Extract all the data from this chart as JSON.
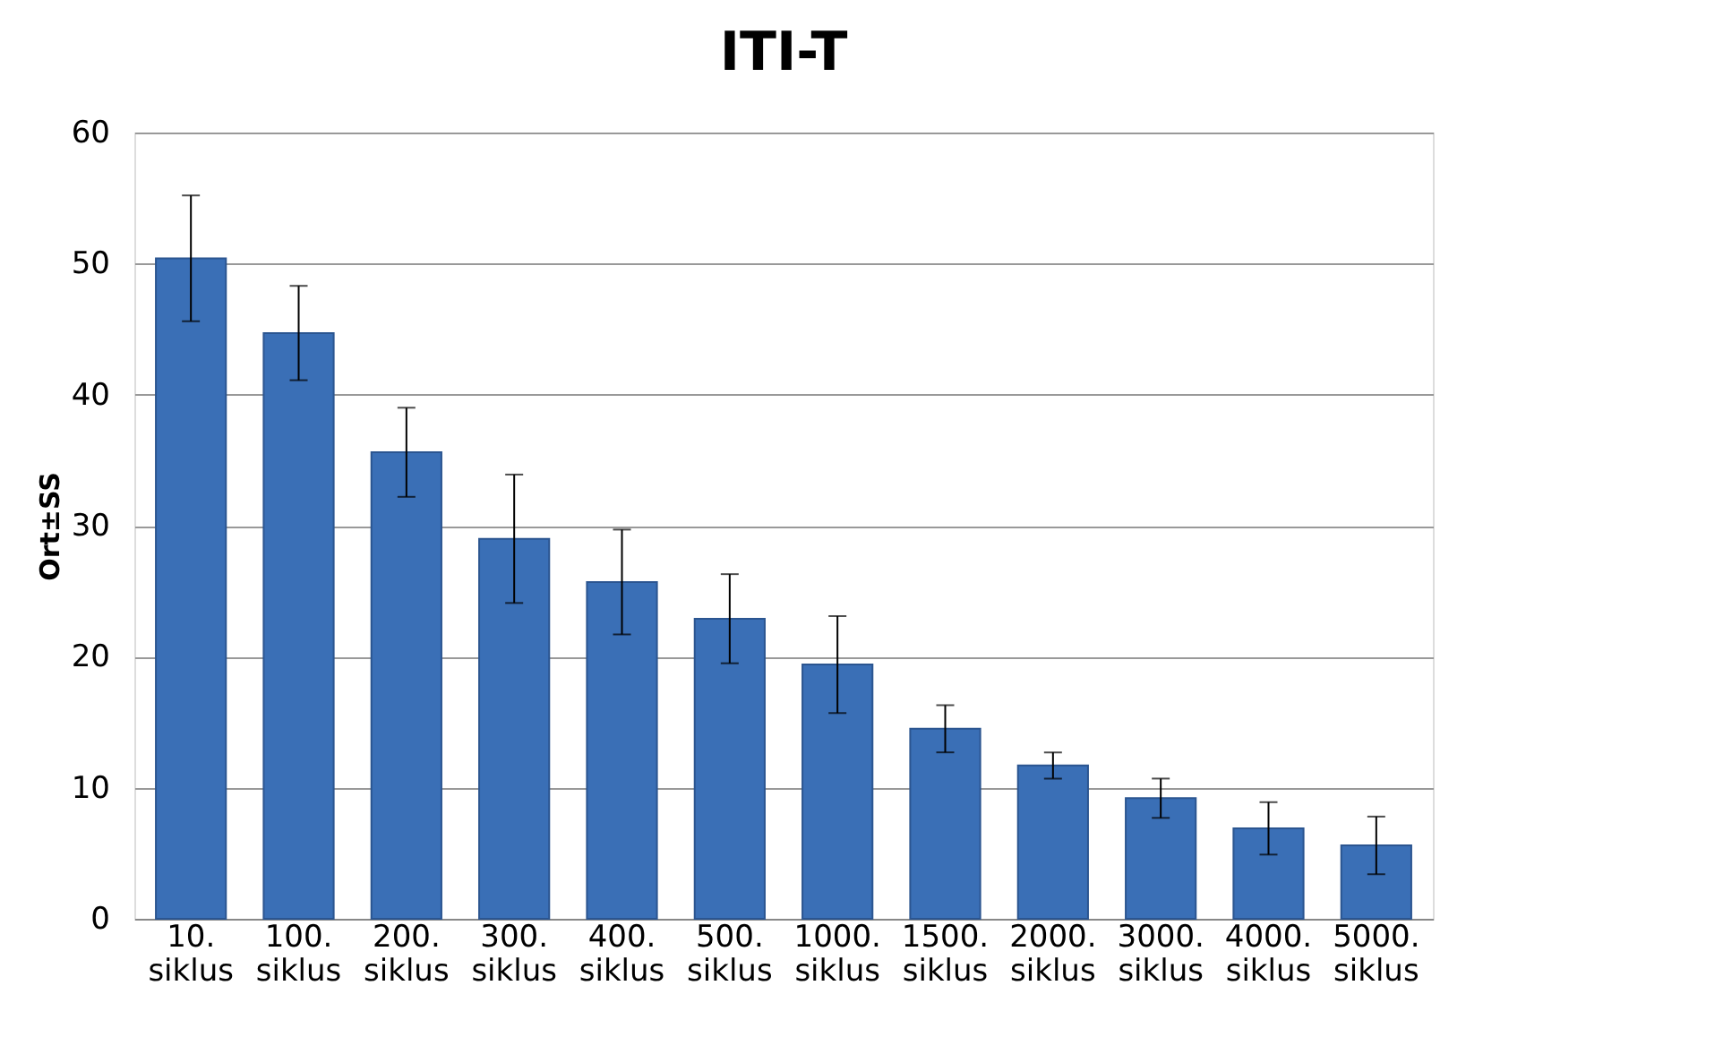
{
  "chart_data": {
    "type": "bar",
    "title": "ITI-T",
    "ylabel": "Ort±SS",
    "categories": [
      "10. siklus",
      "100. siklus",
      "200. siklus",
      "300. siklus",
      "400. siklus",
      "500. siklus",
      "1000. siklus",
      "1500. siklus",
      "2000. siklus",
      "3000. siklus",
      "4000. siklus",
      "5000. siklus"
    ],
    "values": [
      50.4,
      44.7,
      35.6,
      29.0,
      25.7,
      22.9,
      19.4,
      14.5,
      11.7,
      9.2,
      6.9,
      5.6
    ],
    "errors": [
      4.8,
      3.6,
      3.4,
      4.9,
      4.0,
      3.4,
      3.7,
      1.8,
      1.0,
      1.5,
      2.0,
      2.2
    ],
    "color": "#3a6fb6",
    "ylim": [
      0,
      60
    ],
    "yticks": [
      0,
      10,
      20,
      30,
      40,
      50,
      60
    ],
    "grid": "y"
  }
}
